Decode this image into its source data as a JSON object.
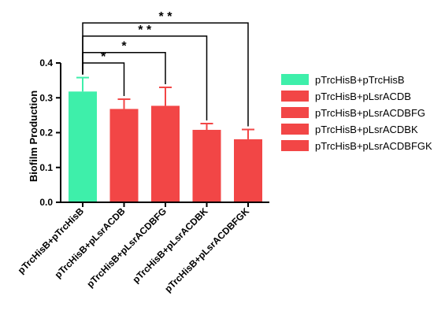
{
  "chart_data": {
    "type": "bar",
    "title": "",
    "xlabel": "",
    "ylabel": "Biofilm Production",
    "ylim": [
      0,
      0.4
    ],
    "yticks": [
      "0.0",
      "0.1",
      "0.2",
      "0.3",
      "0.4"
    ],
    "grid": false,
    "legend_position": "right",
    "categories": [
      "pTrcHisB+pTrcHisB",
      "pTrcHisB+pLsrACDB",
      "pTrcHisB+pLsrACDBFG",
      "pTrcHisB+pLsrACDBK",
      "pTrcHisB+pLsrACDBFGK"
    ],
    "values": [
      0.318,
      0.268,
      0.277,
      0.208,
      0.181
    ],
    "error": [
      0.04,
      0.028,
      0.053,
      0.018,
      0.028
    ],
    "colors": [
      "#3EEFAA",
      "#F24646",
      "#F24646",
      "#F24646",
      "#F24646"
    ],
    "legend": [
      "pTrcHisB+pTrcHisB",
      "pTrcHisB+pLsrACDB",
      "pTrcHisB+pLsrACDBFG",
      "pTrcHisB+pLsrACDBK",
      "pTrcHisB+pLsrACDBFGK"
    ],
    "significance": [
      {
        "from": 0,
        "to": 1,
        "y": 0.4,
        "label": "*"
      },
      {
        "from": 0,
        "to": 2,
        "y": 0.43,
        "label": "*"
      },
      {
        "from": 0,
        "to": 3,
        "y": 0.477,
        "label": "* *"
      },
      {
        "from": 0,
        "to": 4,
        "y": 0.515,
        "label": "* *"
      }
    ]
  }
}
